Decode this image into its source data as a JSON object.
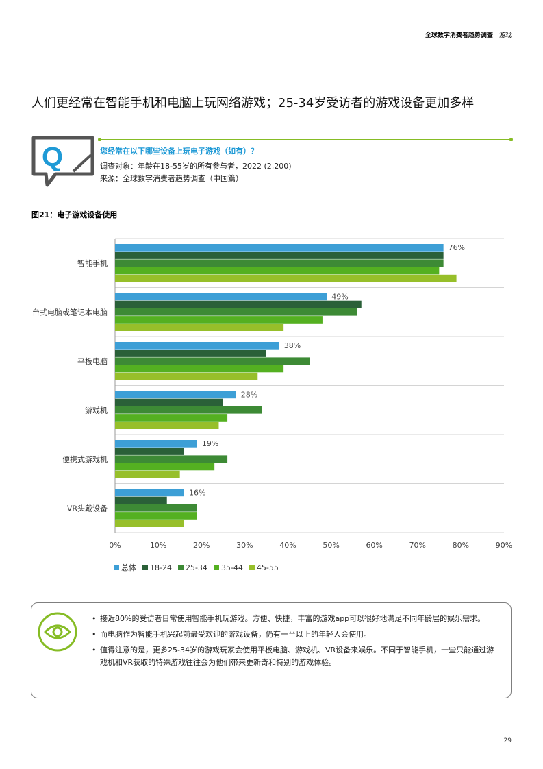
{
  "header": {
    "title": "全球数字消费者趋势调查",
    "separator": "|",
    "section": "游戏"
  },
  "headline": "人们更经常在智能手机和电脑上玩网络游戏；25-34岁受访者的游戏设备更加多样",
  "question_block": {
    "icon_letter": "Q",
    "question": "您经常在以下哪些设备上玩电子游戏（如有）？",
    "subject": "调查对象：年龄在18-55岁的所有参与者，2022 (2,200)",
    "source": "来源：全球数字消费者趋势调查（中国篇）"
  },
  "figure_title": "图21：电子游戏设备使用",
  "chart_data": {
    "type": "bar",
    "orientation": "horizontal",
    "categories": [
      "智能手机",
      "台式电脑或笔记本电脑",
      "平板电脑",
      "游戏机",
      "便携式游戏机",
      "VR头戴设备"
    ],
    "series": [
      {
        "name": "总体",
        "color": "#3d9fd6",
        "values": [
          76,
          49,
          38,
          28,
          19,
          16
        ]
      },
      {
        "name": "18-24",
        "color": "#2a6038",
        "values": [
          76,
          57,
          35,
          25,
          16,
          12
        ]
      },
      {
        "name": "25-34",
        "color": "#3d8a35",
        "values": [
          76,
          56,
          45,
          34,
          26,
          19
        ]
      },
      {
        "name": "35-44",
        "color": "#54b021",
        "values": [
          75,
          48,
          39,
          26,
          23,
          19
        ]
      },
      {
        "name": "45-55",
        "color": "#97bf2a",
        "values": [
          79,
          39,
          33,
          24,
          15,
          16
        ]
      }
    ],
    "data_labels": [
      "76%",
      "49%",
      "38%",
      "28%",
      "19%",
      "16%"
    ],
    "x_ticks": [
      "0%",
      "10%",
      "20%",
      "30%",
      "40%",
      "50%",
      "60%",
      "70%",
      "80%",
      "90%"
    ],
    "xlim": [
      0,
      90
    ],
    "grid": true,
    "legend_position": "bottom-left"
  },
  "insights": [
    "接近80%的受访者日常使用智能手机玩游戏。方便、快捷，丰富的游戏app可以很好地满足不同年龄层的娱乐需求。",
    "而电脑作为智能手机兴起前最受欢迎的游戏设备，仍有一半以上的年轻人会使用。",
    "值得注意的是，更多25-34岁的游戏玩家会使用平板电脑、游戏机、VR设备来娱乐。不同于智能手机，一些只能通过游戏机和VR获取的特殊游戏往往会为他们带来更新奇和特别的游戏体验。"
  ],
  "icons": {
    "question": "question-chat-icon",
    "insight": "eye-icon"
  },
  "page_number": "29"
}
